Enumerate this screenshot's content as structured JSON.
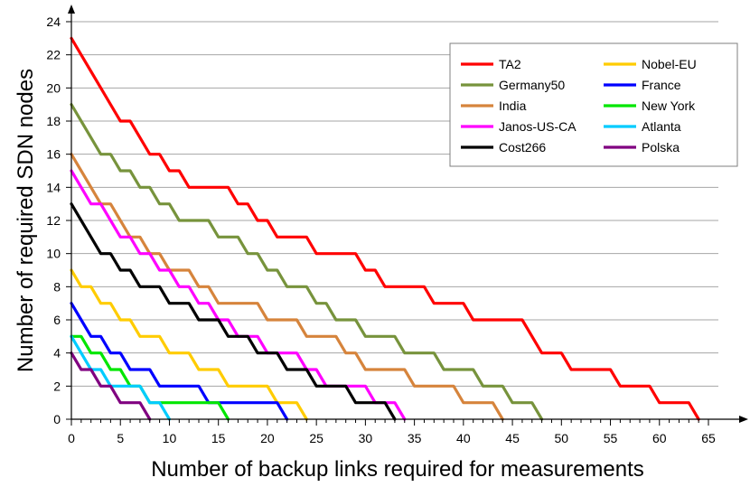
{
  "chart_data": {
    "type": "line",
    "title": "",
    "xlabel": "Number of backup links required for measurements",
    "ylabel": "Number of required SDN nodes",
    "xlim": [
      0,
      65
    ],
    "ylim": [
      0,
      24
    ],
    "xticks": [
      0,
      5,
      10,
      15,
      20,
      25,
      30,
      35,
      40,
      45,
      50,
      55,
      60,
      65
    ],
    "yticks": [
      0,
      2,
      4,
      6,
      8,
      10,
      12,
      14,
      16,
      18,
      20,
      22,
      24
    ],
    "grid": "horizontal",
    "legend_position": "top-right",
    "series": [
      {
        "name": "TA2",
        "color": "#ff0000",
        "points": [
          [
            0,
            23
          ],
          [
            1,
            22
          ],
          [
            2,
            21
          ],
          [
            3,
            20
          ],
          [
            4,
            19
          ],
          [
            5,
            18
          ],
          [
            6,
            18
          ],
          [
            7,
            17
          ],
          [
            8,
            16
          ],
          [
            9,
            16
          ],
          [
            10,
            15
          ],
          [
            11,
            15
          ],
          [
            12,
            14
          ],
          [
            13,
            14
          ],
          [
            14,
            14
          ],
          [
            15,
            14
          ],
          [
            16,
            14
          ],
          [
            17,
            13
          ],
          [
            18,
            13
          ],
          [
            19,
            12
          ],
          [
            20,
            12
          ],
          [
            21,
            11
          ],
          [
            22,
            11
          ],
          [
            23,
            11
          ],
          [
            24,
            11
          ],
          [
            25,
            10
          ],
          [
            26,
            10
          ],
          [
            27,
            10
          ],
          [
            28,
            10
          ],
          [
            29,
            10
          ],
          [
            30,
            9
          ],
          [
            31,
            9
          ],
          [
            32,
            8
          ],
          [
            33,
            8
          ],
          [
            34,
            8
          ],
          [
            35,
            8
          ],
          [
            36,
            8
          ],
          [
            37,
            7
          ],
          [
            38,
            7
          ],
          [
            39,
            7
          ],
          [
            40,
            7
          ],
          [
            41,
            6
          ],
          [
            42,
            6
          ],
          [
            43,
            6
          ],
          [
            44,
            6
          ],
          [
            45,
            6
          ],
          [
            46,
            6
          ],
          [
            47,
            5
          ],
          [
            48,
            4
          ],
          [
            49,
            4
          ],
          [
            50,
            4
          ],
          [
            51,
            3
          ],
          [
            52,
            3
          ],
          [
            53,
            3
          ],
          [
            54,
            3
          ],
          [
            55,
            3
          ],
          [
            56,
            2
          ],
          [
            57,
            2
          ],
          [
            58,
            2
          ],
          [
            59,
            2
          ],
          [
            60,
            1
          ],
          [
            61,
            1
          ],
          [
            62,
            1
          ],
          [
            63,
            1
          ],
          [
            64,
            0
          ]
        ]
      },
      {
        "name": "Germany50",
        "color": "#77933c",
        "points": [
          [
            0,
            19
          ],
          [
            1,
            18
          ],
          [
            2,
            17
          ],
          [
            3,
            16
          ],
          [
            4,
            16
          ],
          [
            5,
            15
          ],
          [
            6,
            15
          ],
          [
            7,
            14
          ],
          [
            8,
            14
          ],
          [
            9,
            13
          ],
          [
            10,
            13
          ],
          [
            11,
            12
          ],
          [
            12,
            12
          ],
          [
            13,
            12
          ],
          [
            14,
            12
          ],
          [
            15,
            11
          ],
          [
            16,
            11
          ],
          [
            17,
            11
          ],
          [
            18,
            10
          ],
          [
            19,
            10
          ],
          [
            20,
            9
          ],
          [
            21,
            9
          ],
          [
            22,
            8
          ],
          [
            23,
            8
          ],
          [
            24,
            8
          ],
          [
            25,
            7
          ],
          [
            26,
            7
          ],
          [
            27,
            6
          ],
          [
            28,
            6
          ],
          [
            29,
            6
          ],
          [
            30,
            5
          ],
          [
            31,
            5
          ],
          [
            32,
            5
          ],
          [
            33,
            5
          ],
          [
            34,
            4
          ],
          [
            35,
            4
          ],
          [
            36,
            4
          ],
          [
            37,
            4
          ],
          [
            38,
            3
          ],
          [
            39,
            3
          ],
          [
            40,
            3
          ],
          [
            41,
            3
          ],
          [
            42,
            2
          ],
          [
            43,
            2
          ],
          [
            44,
            2
          ],
          [
            45,
            1
          ],
          [
            46,
            1
          ],
          [
            47,
            1
          ],
          [
            48,
            0
          ]
        ]
      },
      {
        "name": "India",
        "color": "#d6843c",
        "points": [
          [
            0,
            16
          ],
          [
            1,
            15
          ],
          [
            2,
            14
          ],
          [
            3,
            13
          ],
          [
            4,
            13
          ],
          [
            5,
            12
          ],
          [
            6,
            11
          ],
          [
            7,
            11
          ],
          [
            8,
            10
          ],
          [
            9,
            10
          ],
          [
            10,
            9
          ],
          [
            11,
            9
          ],
          [
            12,
            9
          ],
          [
            13,
            8
          ],
          [
            14,
            8
          ],
          [
            15,
            7
          ],
          [
            16,
            7
          ],
          [
            17,
            7
          ],
          [
            18,
            7
          ],
          [
            19,
            7
          ],
          [
            20,
            6
          ],
          [
            21,
            6
          ],
          [
            22,
            6
          ],
          [
            23,
            6
          ],
          [
            24,
            5
          ],
          [
            25,
            5
          ],
          [
            26,
            5
          ],
          [
            27,
            5
          ],
          [
            28,
            4
          ],
          [
            29,
            4
          ],
          [
            30,
            3
          ],
          [
            31,
            3
          ],
          [
            32,
            3
          ],
          [
            33,
            3
          ],
          [
            34,
            3
          ],
          [
            35,
            2
          ],
          [
            36,
            2
          ],
          [
            37,
            2
          ],
          [
            38,
            2
          ],
          [
            39,
            2
          ],
          [
            40,
            1
          ],
          [
            41,
            1
          ],
          [
            42,
            1
          ],
          [
            43,
            1
          ],
          [
            44,
            0
          ]
        ]
      },
      {
        "name": "Janos-US-CA",
        "color": "#ff00ff",
        "points": [
          [
            0,
            15
          ],
          [
            1,
            14
          ],
          [
            2,
            13
          ],
          [
            3,
            13
          ],
          [
            4,
            12
          ],
          [
            5,
            11
          ],
          [
            6,
            11
          ],
          [
            7,
            10
          ],
          [
            8,
            10
          ],
          [
            9,
            9
          ],
          [
            10,
            9
          ],
          [
            11,
            8
          ],
          [
            12,
            8
          ],
          [
            13,
            7
          ],
          [
            14,
            7
          ],
          [
            15,
            6
          ],
          [
            16,
            6
          ],
          [
            17,
            5
          ],
          [
            18,
            5
          ],
          [
            19,
            5
          ],
          [
            20,
            4
          ],
          [
            21,
            4
          ],
          [
            22,
            4
          ],
          [
            23,
            4
          ],
          [
            24,
            3
          ],
          [
            25,
            3
          ],
          [
            26,
            2
          ],
          [
            27,
            2
          ],
          [
            28,
            2
          ],
          [
            29,
            2
          ],
          [
            30,
            2
          ],
          [
            31,
            1
          ],
          [
            32,
            1
          ],
          [
            33,
            1
          ],
          [
            34,
            0
          ]
        ]
      },
      {
        "name": "Cost266",
        "color": "#000000",
        "points": [
          [
            0,
            13
          ],
          [
            1,
            12
          ],
          [
            2,
            11
          ],
          [
            3,
            10
          ],
          [
            4,
            10
          ],
          [
            5,
            9
          ],
          [
            6,
            9
          ],
          [
            7,
            8
          ],
          [
            8,
            8
          ],
          [
            9,
            8
          ],
          [
            10,
            7
          ],
          [
            11,
            7
          ],
          [
            12,
            7
          ],
          [
            13,
            6
          ],
          [
            14,
            6
          ],
          [
            15,
            6
          ],
          [
            16,
            5
          ],
          [
            17,
            5
          ],
          [
            18,
            5
          ],
          [
            19,
            4
          ],
          [
            20,
            4
          ],
          [
            21,
            4
          ],
          [
            22,
            3
          ],
          [
            23,
            3
          ],
          [
            24,
            3
          ],
          [
            25,
            2
          ],
          [
            26,
            2
          ],
          [
            27,
            2
          ],
          [
            28,
            2
          ],
          [
            29,
            1
          ],
          [
            30,
            1
          ],
          [
            31,
            1
          ],
          [
            32,
            1
          ],
          [
            33,
            0
          ]
        ]
      },
      {
        "name": "Nobel-EU",
        "color": "#ffcc00",
        "points": [
          [
            0,
            9
          ],
          [
            1,
            8
          ],
          [
            2,
            8
          ],
          [
            3,
            7
          ],
          [
            4,
            7
          ],
          [
            5,
            6
          ],
          [
            6,
            6
          ],
          [
            7,
            5
          ],
          [
            8,
            5
          ],
          [
            9,
            5
          ],
          [
            10,
            4
          ],
          [
            11,
            4
          ],
          [
            12,
            4
          ],
          [
            13,
            3
          ],
          [
            14,
            3
          ],
          [
            15,
            3
          ],
          [
            16,
            2
          ],
          [
            17,
            2
          ],
          [
            18,
            2
          ],
          [
            19,
            2
          ],
          [
            20,
            2
          ],
          [
            21,
            1
          ],
          [
            22,
            1
          ],
          [
            23,
            1
          ],
          [
            24,
            0
          ]
        ]
      },
      {
        "name": "France",
        "color": "#0000ff",
        "points": [
          [
            0,
            7
          ],
          [
            1,
            6
          ],
          [
            2,
            5
          ],
          [
            3,
            5
          ],
          [
            4,
            4
          ],
          [
            5,
            4
          ],
          [
            6,
            3
          ],
          [
            7,
            3
          ],
          [
            8,
            3
          ],
          [
            9,
            2
          ],
          [
            10,
            2
          ],
          [
            11,
            2
          ],
          [
            12,
            2
          ],
          [
            13,
            2
          ],
          [
            14,
            1
          ],
          [
            15,
            1
          ],
          [
            16,
            1
          ],
          [
            17,
            1
          ],
          [
            18,
            1
          ],
          [
            19,
            1
          ],
          [
            20,
            1
          ],
          [
            21,
            1
          ],
          [
            22,
            0
          ]
        ]
      },
      {
        "name": "New York",
        "color": "#00e600",
        "points": [
          [
            0,
            5
          ],
          [
            1,
            5
          ],
          [
            2,
            4
          ],
          [
            3,
            4
          ],
          [
            4,
            3
          ],
          [
            5,
            3
          ],
          [
            6,
            2
          ],
          [
            7,
            2
          ],
          [
            8,
            1
          ],
          [
            9,
            1
          ],
          [
            10,
            1
          ],
          [
            11,
            1
          ],
          [
            12,
            1
          ],
          [
            13,
            1
          ],
          [
            14,
            1
          ],
          [
            15,
            1
          ],
          [
            16,
            0
          ]
        ]
      },
      {
        "name": "Atlanta",
        "color": "#00ccff",
        "points": [
          [
            0,
            5
          ],
          [
            1,
            4
          ],
          [
            2,
            3
          ],
          [
            3,
            3
          ],
          [
            4,
            2
          ],
          [
            5,
            2
          ],
          [
            6,
            2
          ],
          [
            7,
            2
          ],
          [
            8,
            1
          ],
          [
            9,
            1
          ],
          [
            10,
            0
          ]
        ]
      },
      {
        "name": "Polska",
        "color": "#800080",
        "points": [
          [
            0,
            4
          ],
          [
            1,
            3
          ],
          [
            2,
            3
          ],
          [
            3,
            2
          ],
          [
            4,
            2
          ],
          [
            5,
            1
          ],
          [
            6,
            1
          ],
          [
            7,
            1
          ],
          [
            8,
            0
          ]
        ]
      }
    ]
  }
}
